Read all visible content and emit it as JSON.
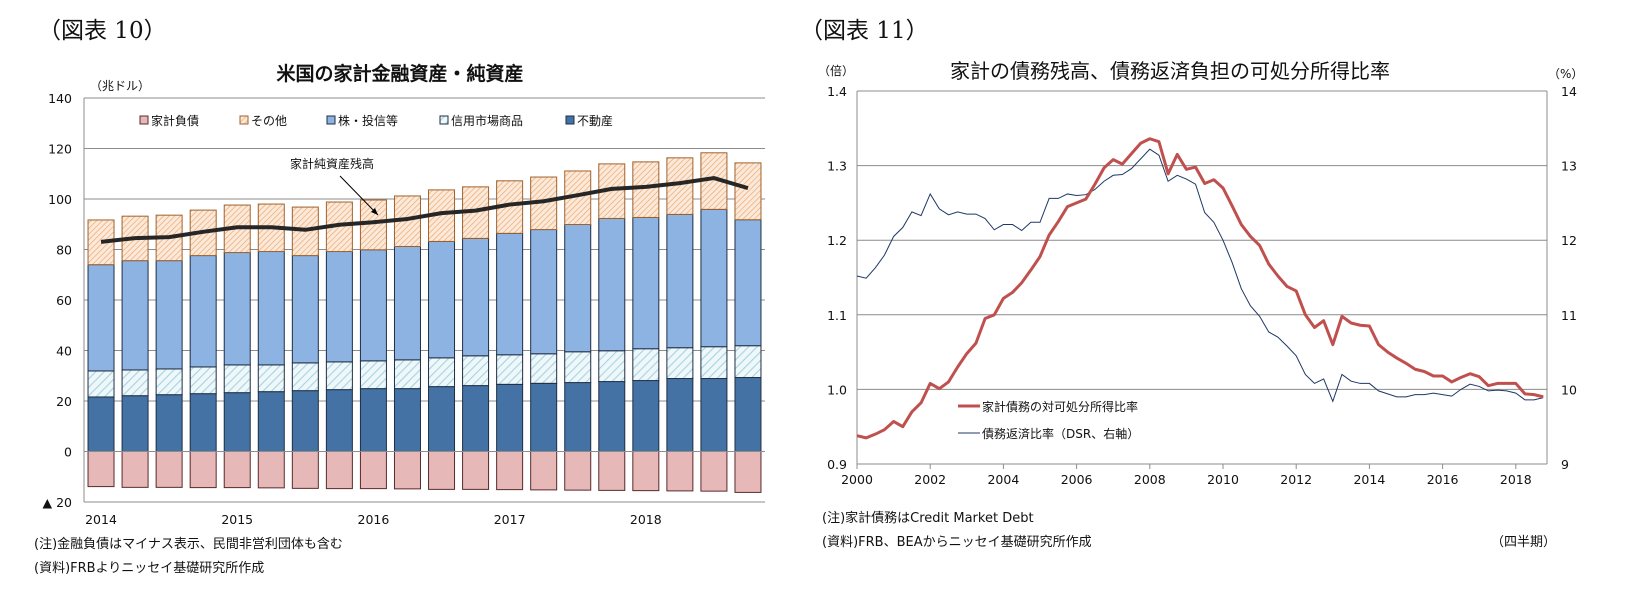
{
  "left": {
    "figure_label": "（図表 10）",
    "notes": [
      "(注)金融負債はマイナス表示、民間非営利団体も含む",
      "(資料)FRBよりニッセイ基礎研究所作成"
    ]
  },
  "right": {
    "figure_label": "（図表 11）",
    "notes": [
      "(注)家計債務はCredit Market Debt",
      "(資料)FRB、BEAからニッセイ基礎研究所作成"
    ],
    "period_label": "（四半期）"
  },
  "chart_data": [
    {
      "type": "bar",
      "stacked": true,
      "title": "米国の家計金融資産・純資産",
      "ylabel": "（兆ドル）",
      "ylim": [
        -20,
        140
      ],
      "y_ticks": [
        140,
        120,
        100,
        80,
        60,
        40,
        20,
        0,
        -20
      ],
      "y_tick_labels": [
        "140",
        "120",
        "100",
        "80",
        "60",
        "40",
        "20",
        "0",
        "▲ 20"
      ],
      "grid": true,
      "legend_position": "top",
      "categories": [
        "2014Q1",
        "2014Q2",
        "2014Q3",
        "2014Q4",
        "2015Q1",
        "2015Q2",
        "2015Q3",
        "2015Q4",
        "2016Q1",
        "2016Q2",
        "2016Q3",
        "2016Q4",
        "2017Q1",
        "2017Q2",
        "2017Q3",
        "2017Q4",
        "2018Q1",
        "2018Q2",
        "2018Q3",
        "2018Q4"
      ],
      "x_tick_labels": [
        "2014",
        "2015",
        "2016",
        "2017",
        "2018"
      ],
      "series": [
        {
          "name": "家計負債",
          "color": "#e6b9b8",
          "values": [
            -13.9,
            -14.2,
            -14.2,
            -14.3,
            -14.3,
            -14.4,
            -14.6,
            -14.7,
            -14.7,
            -14.8,
            -15.0,
            -15.0,
            -15.1,
            -15.2,
            -15.3,
            -15.4,
            -15.5,
            -15.6,
            -15.7,
            -16.2
          ]
        },
        {
          "name": "不動産",
          "color": "#4472a4",
          "values": [
            21.6,
            22.1,
            22.5,
            22.9,
            23.3,
            23.7,
            24.1,
            24.5,
            24.9,
            24.9,
            25.7,
            26.1,
            26.6,
            27.0,
            27.3,
            27.7,
            28.1,
            28.9,
            28.9,
            29.3
          ]
        },
        {
          "name": "信用市場商品",
          "color": "#b7dee8",
          "values": [
            10.3,
            10.2,
            10.2,
            10.6,
            11.0,
            10.6,
            11.0,
            11.0,
            11.0,
            11.4,
            11.4,
            11.8,
            11.7,
            11.7,
            12.2,
            12.2,
            12.6,
            12.2,
            12.6,
            12.6
          ]
        },
        {
          "name": "株・投信等",
          "color": "#8db3e2",
          "values": [
            42.1,
            43.3,
            42.9,
            44.1,
            44.5,
            44.9,
            42.5,
            43.7,
            44.0,
            44.9,
            46.1,
            46.5,
            48.1,
            49.2,
            50.4,
            52.4,
            52.0,
            52.8,
            54.4,
            49.9
          ]
        },
        {
          "name": "その他",
          "color": "#fbd5b5",
          "values": [
            17.7,
            17.6,
            18.0,
            18.0,
            18.8,
            18.8,
            19.2,
            19.6,
            19.7,
            20.0,
            20.4,
            20.4,
            20.8,
            20.8,
            21.2,
            21.6,
            22.0,
            22.4,
            22.4,
            22.5
          ]
        }
      ],
      "legend_order": [
        "家計負債",
        "その他",
        "株・投信等",
        "信用市場商品",
        "不動産"
      ],
      "line": {
        "name": "家計純資産残高",
        "color": "#262626",
        "values": [
          83.0,
          84.5,
          84.9,
          87.0,
          88.8,
          88.8,
          87.8,
          89.8,
          90.8,
          92.1,
          94.4,
          95.4,
          97.8,
          99.1,
          101.5,
          104.0,
          104.8,
          106.3,
          108.3,
          104.3
        ]
      },
      "annotation": "家計純資産残高"
    },
    {
      "type": "line",
      "title": "家計の債務残高、債務返済負担の可処分所得比率",
      "ylabel_left": "（倍）",
      "ylabel_right": "（%）",
      "ylim_left": [
        0.9,
        1.4
      ],
      "ylim_right": [
        9,
        14
      ],
      "y_ticks_left": [
        "1.4",
        "1.3",
        "1.2",
        "1.1",
        "1.0",
        "0.9"
      ],
      "y_ticks_right": [
        "14",
        "13",
        "12",
        "11",
        "10",
        "9"
      ],
      "x_tick_labels": [
        "2000",
        "2002",
        "2004",
        "2006",
        "2008",
        "2010",
        "2012",
        "2014",
        "2016",
        "2018"
      ],
      "x_start": "2000Q1",
      "frequency": "quarterly",
      "grid": true,
      "legend_position": "bottom-left",
      "series": [
        {
          "name": "家計債務の対可処分所得比率",
          "axis": "left",
          "color": "#c0504d",
          "values": [
            0.938,
            0.935,
            0.94,
            0.946,
            0.957,
            0.95,
            0.97,
            0.982,
            1.008,
            1.001,
            1.01,
            1.03,
            1.048,
            1.062,
            1.095,
            1.1,
            1.122,
            1.13,
            1.143,
            1.16,
            1.178,
            1.207,
            1.225,
            1.245,
            1.25,
            1.255,
            1.275,
            1.297,
            1.308,
            1.302,
            1.316,
            1.33,
            1.336,
            1.332,
            1.289,
            1.315,
            1.295,
            1.298,
            1.276,
            1.281,
            1.27,
            1.246,
            1.221,
            1.205,
            1.193,
            1.168,
            1.152,
            1.138,
            1.132,
            1.1,
            1.083,
            1.092,
            1.06,
            1.098,
            1.089,
            1.086,
            1.085,
            1.06,
            1.05,
            1.042,
            1.035,
            1.027,
            1.024,
            1.018,
            1.018,
            1.01,
            1.016,
            1.021,
            1.017,
            1.005,
            1.008,
            1.008,
            1.008,
            0.994,
            0.993,
            0.99
          ]
        },
        {
          "name": "債務返済比率（DSR、右軸）",
          "axis": "right",
          "color": "#1f3864",
          "values": [
            11.52,
            11.49,
            11.63,
            11.8,
            12.05,
            12.17,
            12.38,
            12.33,
            12.62,
            12.42,
            12.34,
            12.38,
            12.35,
            12.35,
            12.29,
            12.14,
            12.21,
            12.21,
            12.13,
            12.24,
            12.24,
            12.56,
            12.56,
            12.62,
            12.6,
            12.61,
            12.68,
            12.79,
            12.87,
            12.88,
            12.96,
            13.09,
            13.22,
            13.14,
            12.79,
            12.87,
            12.82,
            12.75,
            12.37,
            12.24,
            12.0,
            11.7,
            11.35,
            11.12,
            10.98,
            10.77,
            10.7,
            10.58,
            10.45,
            10.2,
            10.08,
            10.14,
            9.84,
            10.2,
            10.11,
            10.08,
            10.08,
            9.98,
            9.94,
            9.9,
            9.9,
            9.93,
            9.93,
            9.95,
            9.93,
            9.91,
            10.0,
            10.07,
            10.04,
            9.98,
            9.99,
            9.98,
            9.95,
            9.86,
            9.86,
            9.89
          ]
        }
      ]
    }
  ]
}
